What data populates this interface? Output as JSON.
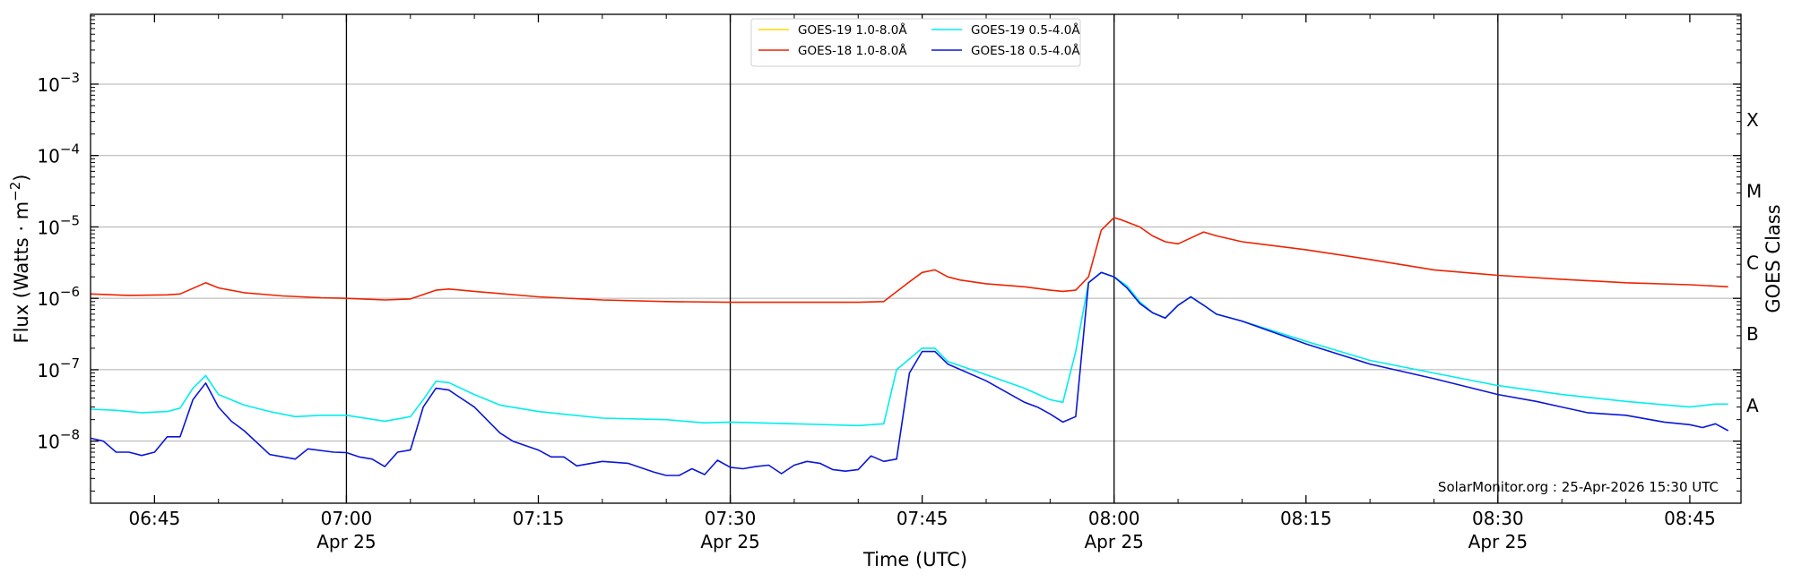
{
  "chart_data": {
    "type": "line",
    "xlabel": "Time (UTC)",
    "ylabel": "Flux (Watts · m⁻²)",
    "right_ylabel": "GOES Class",
    "y_scale": "log",
    "ylim": [
      1.35e-09,
      0.0095
    ],
    "xlim": [
      "06:40",
      "08:49"
    ],
    "x_ticks": [
      {
        "time": "06:45",
        "label": "06:45",
        "date": ""
      },
      {
        "time": "07:00",
        "label": "07:00",
        "date": "Apr 25"
      },
      {
        "time": "07:15",
        "label": "07:15",
        "date": ""
      },
      {
        "time": "07:30",
        "label": "07:30",
        "date": "Apr 25"
      },
      {
        "time": "07:45",
        "label": "07:45",
        "date": ""
      },
      {
        "time": "08:00",
        "label": "08:00",
        "date": "Apr 25"
      },
      {
        "time": "08:15",
        "label": "08:15",
        "date": ""
      },
      {
        "time": "08:30",
        "label": "08:30",
        "date": "Apr 25"
      },
      {
        "time": "08:45",
        "label": "08:45",
        "date": ""
      }
    ],
    "y_ticks": [
      {
        "value": 1e-08,
        "base": "10",
        "exp": "−8"
      },
      {
        "value": 1e-07,
        "base": "10",
        "exp": "−7"
      },
      {
        "value": 1e-06,
        "base": "10",
        "exp": "−6"
      },
      {
        "value": 1e-05,
        "base": "10",
        "exp": "−5"
      },
      {
        "value": 0.0001,
        "base": "10",
        "exp": "−4"
      },
      {
        "value": 0.001,
        "base": "10",
        "exp": "−3"
      }
    ],
    "vertical_lines": [
      "07:00",
      "07:30",
      "08:00",
      "08:30"
    ],
    "goes_classes": [
      {
        "label": "A",
        "value": 3.16e-08
      },
      {
        "label": "B",
        "value": 3.16e-07
      },
      {
        "label": "C",
        "value": 3.16e-06
      },
      {
        "label": "M",
        "value": 3.16e-05
      },
      {
        "label": "X",
        "value": 0.000316
      }
    ],
    "grid": true,
    "legend_position": "top-center",
    "credit": "SolarMonitor.org : 25-Apr-2026 15:30 UTC",
    "series": [
      {
        "name": "GOES-19 1.0-8.0Å",
        "color": "#ffd700",
        "points": []
      },
      {
        "name": "GOES-18 1.0-8.0Å",
        "color": "#ee2200",
        "points": [
          [
            "06:40",
            1.15e-06
          ],
          [
            "06:43",
            1.1e-06
          ],
          [
            "06:46",
            1.12e-06
          ],
          [
            "06:47",
            1.15e-06
          ],
          [
            "06:49",
            1.65e-06
          ],
          [
            "06:50",
            1.4e-06
          ],
          [
            "06:52",
            1.2e-06
          ],
          [
            "06:55",
            1.08e-06
          ],
          [
            "06:58",
            1.02e-06
          ],
          [
            "07:00",
            1e-06
          ],
          [
            "07:03",
            9.5e-07
          ],
          [
            "07:05",
            9.8e-07
          ],
          [
            "07:07",
            1.3e-06
          ],
          [
            "07:08",
            1.35e-06
          ],
          [
            "07:10",
            1.25e-06
          ],
          [
            "07:15",
            1.05e-06
          ],
          [
            "07:20",
            9.5e-07
          ],
          [
            "07:25",
            9e-07
          ],
          [
            "07:30",
            8.8e-07
          ],
          [
            "07:35",
            8.8e-07
          ],
          [
            "07:40",
            8.8e-07
          ],
          [
            "07:42",
            9e-07
          ],
          [
            "07:44",
            1.7e-06
          ],
          [
            "07:45",
            2.3e-06
          ],
          [
            "07:46",
            2.5e-06
          ],
          [
            "07:47",
            2e-06
          ],
          [
            "07:48",
            1.8e-06
          ],
          [
            "07:50",
            1.6e-06
          ],
          [
            "07:53",
            1.45e-06
          ],
          [
            "07:55",
            1.3e-06
          ],
          [
            "07:56",
            1.25e-06
          ],
          [
            "07:57",
            1.3e-06
          ],
          [
            "07:58",
            2e-06
          ],
          [
            "07:59",
            9e-06
          ],
          [
            "08:00",
            1.35e-05
          ],
          [
            "08:00.6",
            1.25e-05
          ],
          [
            "08:02",
            1e-05
          ],
          [
            "08:03",
            7.5e-06
          ],
          [
            "08:04",
            6.2e-06
          ],
          [
            "08:05",
            5.8e-06
          ],
          [
            "08:06",
            7e-06
          ],
          [
            "08:07",
            8.5e-06
          ],
          [
            "08:08",
            7.5e-06
          ],
          [
            "08:10",
            6.2e-06
          ],
          [
            "08:15",
            4.8e-06
          ],
          [
            "08:20",
            3.5e-06
          ],
          [
            "08:25",
            2.5e-06
          ],
          [
            "08:30",
            2.1e-06
          ],
          [
            "08:35",
            1.85e-06
          ],
          [
            "08:40",
            1.65e-06
          ],
          [
            "08:45",
            1.55e-06
          ],
          [
            "08:48",
            1.45e-06
          ]
        ]
      },
      {
        "name": "GOES-19 0.5-4.0Å",
        "color": "#00eeee",
        "points": [
          [
            "06:40",
            2.8e-08
          ],
          [
            "06:42",
            2.7e-08
          ],
          [
            "06:44",
            2.5e-08
          ],
          [
            "06:46",
            2.6e-08
          ],
          [
            "06:47",
            2.9e-08
          ],
          [
            "06:48",
            5.5e-08
          ],
          [
            "06:49",
            8.3e-08
          ],
          [
            "06:50",
            4.5e-08
          ],
          [
            "06:52",
            3.2e-08
          ],
          [
            "06:54",
            2.6e-08
          ],
          [
            "06:56",
            2.2e-08
          ],
          [
            "06:58",
            2.3e-08
          ],
          [
            "07:00",
            2.3e-08
          ],
          [
            "07:03",
            1.9e-08
          ],
          [
            "07:05",
            2.2e-08
          ],
          [
            "07:06",
            3.8e-08
          ],
          [
            "07:07",
            6.9e-08
          ],
          [
            "07:08",
            6.6e-08
          ],
          [
            "07:10",
            4.5e-08
          ],
          [
            "07:12",
            3.2e-08
          ],
          [
            "07:15",
            2.6e-08
          ],
          [
            "07:20",
            2.1e-08
          ],
          [
            "07:25",
            2e-08
          ],
          [
            "07:28",
            1.8e-08
          ],
          [
            "07:30",
            1.85e-08
          ],
          [
            "07:35",
            1.75e-08
          ],
          [
            "07:40",
            1.65e-08
          ],
          [
            "07:42",
            1.75e-08
          ],
          [
            "07:43",
            1e-07
          ],
          [
            "07:45",
            2e-07
          ],
          [
            "07:46",
            2e-07
          ],
          [
            "07:47",
            1.3e-07
          ],
          [
            "07:50",
            8.5e-08
          ],
          [
            "07:53",
            5.5e-08
          ],
          [
            "07:55",
            3.8e-08
          ],
          [
            "07:56",
            3.5e-08
          ],
          [
            "07:57",
            1.8e-07
          ],
          [
            "07:58",
            1.65e-06
          ],
          [
            "07:59",
            2.3e-06
          ],
          [
            "08:00",
            2e-06
          ],
          [
            "08:01",
            1.5e-06
          ],
          [
            "08:02",
            9e-07
          ],
          [
            "08:03",
            6.3e-07
          ],
          [
            "08:04",
            5.3e-07
          ],
          [
            "08:05",
            8e-07
          ],
          [
            "08:06",
            1.05e-06
          ],
          [
            "08:07",
            8e-07
          ],
          [
            "08:08",
            6e-07
          ],
          [
            "08:10",
            4.8e-07
          ],
          [
            "08:15",
            2.5e-07
          ],
          [
            "08:20",
            1.35e-07
          ],
          [
            "08:25",
            9e-08
          ],
          [
            "08:30",
            6e-08
          ],
          [
            "08:35",
            4.5e-08
          ],
          [
            "08:40",
            3.6e-08
          ],
          [
            "08:45",
            3e-08
          ],
          [
            "08:47",
            3.3e-08
          ],
          [
            "08:48",
            3.3e-08
          ]
        ]
      },
      {
        "name": "GOES-18 0.5-4.0Å",
        "color": "#0a16d8",
        "points": [
          [
            "06:40",
            1.1e-08
          ],
          [
            "06:41",
            1e-08
          ],
          [
            "06:42",
            7e-09
          ],
          [
            "06:43",
            7e-09
          ],
          [
            "06:44",
            6.3e-09
          ],
          [
            "06:45",
            7e-09
          ],
          [
            "06:46",
            1.15e-08
          ],
          [
            "06:47",
            1.15e-08
          ],
          [
            "06:48",
            3.8e-08
          ],
          [
            "06:49",
            6.5e-08
          ],
          [
            "06:50",
            3e-08
          ],
          [
            "06:51",
            1.9e-08
          ],
          [
            "06:52",
            1.4e-08
          ],
          [
            "06:54",
            6.5e-09
          ],
          [
            "06:56",
            5.6e-09
          ],
          [
            "06:57",
            7.8e-09
          ],
          [
            "06:59",
            7e-09
          ],
          [
            "07:00",
            6.9e-09
          ],
          [
            "07:01",
            6e-09
          ],
          [
            "07:02",
            5.6e-09
          ],
          [
            "07:03",
            4.4e-09
          ],
          [
            "07:04",
            7e-09
          ],
          [
            "07:05",
            7.5e-09
          ],
          [
            "07:06",
            3e-08
          ],
          [
            "07:07",
            5.5e-08
          ],
          [
            "07:08",
            5.2e-08
          ],
          [
            "07:10",
            3e-08
          ],
          [
            "07:12",
            1.3e-08
          ],
          [
            "07:13",
            1e-08
          ],
          [
            "07:15",
            7.5e-09
          ],
          [
            "07:16",
            6e-09
          ],
          [
            "07:17",
            6e-09
          ],
          [
            "07:18",
            4.5e-09
          ],
          [
            "07:20",
            5.2e-09
          ],
          [
            "07:22",
            4.9e-09
          ],
          [
            "07:24",
            3.7e-09
          ],
          [
            "07:25",
            3.3e-09
          ],
          [
            "07:26",
            3.3e-09
          ],
          [
            "07:27",
            4.1e-09
          ],
          [
            "07:28",
            3.4e-09
          ],
          [
            "07:29",
            5.4e-09
          ],
          [
            "07:30",
            4.3e-09
          ],
          [
            "07:31",
            4.1e-09
          ],
          [
            "07:32",
            4.4e-09
          ],
          [
            "07:33",
            4.6e-09
          ],
          [
            "07:34",
            3.5e-09
          ],
          [
            "07:35",
            4.6e-09
          ],
          [
            "07:36",
            5.2e-09
          ],
          [
            "07:37",
            4.9e-09
          ],
          [
            "07:38",
            4e-09
          ],
          [
            "07:39",
            3.8e-09
          ],
          [
            "07:40",
            4e-09
          ],
          [
            "07:41",
            6.2e-09
          ],
          [
            "07:42",
            5.2e-09
          ],
          [
            "07:43",
            5.6e-09
          ],
          [
            "07:44",
            9e-08
          ],
          [
            "07:45",
            1.8e-07
          ],
          [
            "07:46",
            1.8e-07
          ],
          [
            "07:47",
            1.2e-07
          ],
          [
            "07:50",
            7e-08
          ],
          [
            "07:53",
            3.5e-08
          ],
          [
            "07:54",
            3e-08
          ],
          [
            "07:55",
            2.4e-08
          ],
          [
            "07:56",
            1.85e-08
          ],
          [
            "07:57",
            2.2e-08
          ],
          [
            "07:58",
            1.65e-06
          ],
          [
            "07:59",
            2.3e-06
          ],
          [
            "08:00",
            2e-06
          ],
          [
            "08:01",
            1.4e-06
          ],
          [
            "08:02",
            8.5e-07
          ],
          [
            "08:03",
            6.3e-07
          ],
          [
            "08:04",
            5.3e-07
          ],
          [
            "08:05",
            8e-07
          ],
          [
            "08:06",
            1.05e-06
          ],
          [
            "08:07",
            8e-07
          ],
          [
            "08:08",
            6e-07
          ],
          [
            "08:10",
            4.8e-07
          ],
          [
            "08:15",
            2.3e-07
          ],
          [
            "08:20",
            1.2e-07
          ],
          [
            "08:25",
            7.5e-08
          ],
          [
            "08:30",
            4.5e-08
          ],
          [
            "08:33",
            3.6e-08
          ],
          [
            "08:35",
            3e-08
          ],
          [
            "08:37",
            2.5e-08
          ],
          [
            "08:40",
            2.3e-08
          ],
          [
            "08:43",
            1.85e-08
          ],
          [
            "08:45",
            1.7e-08
          ],
          [
            "08:46",
            1.55e-08
          ],
          [
            "08:47",
            1.75e-08
          ],
          [
            "08:48",
            1.4e-08
          ]
        ]
      }
    ]
  }
}
